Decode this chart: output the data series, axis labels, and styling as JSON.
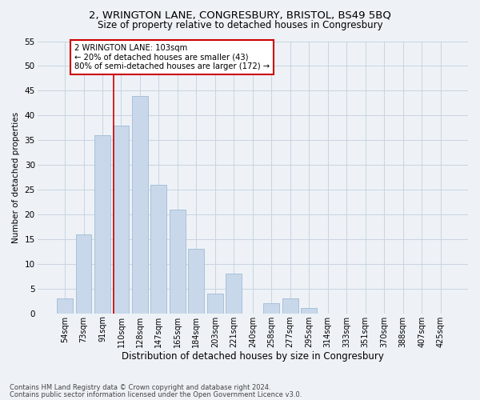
{
  "title1": "2, WRINGTON LANE, CONGRESBURY, BRISTOL, BS49 5BQ",
  "title2": "Size of property relative to detached houses in Congresbury",
  "xlabel": "Distribution of detached houses by size in Congresbury",
  "ylabel": "Number of detached properties",
  "footnote1": "Contains HM Land Registry data © Crown copyright and database right 2024.",
  "footnote2": "Contains public sector information licensed under the Open Government Licence v3.0.",
  "bar_labels": [
    "54sqm",
    "73sqm",
    "91sqm",
    "110sqm",
    "128sqm",
    "147sqm",
    "165sqm",
    "184sqm",
    "203sqm",
    "221sqm",
    "240sqm",
    "258sqm",
    "277sqm",
    "295sqm",
    "314sqm",
    "333sqm",
    "351sqm",
    "370sqm",
    "388sqm",
    "407sqm",
    "425sqm"
  ],
  "bar_values": [
    3,
    16,
    36,
    38,
    44,
    26,
    21,
    13,
    4,
    8,
    0,
    2,
    3,
    1,
    0,
    0,
    0,
    0,
    0,
    0,
    0
  ],
  "bar_color": "#c8d8ea",
  "bar_edge_color": "#a8c0d8",
  "grid_color": "#c8d4e0",
  "background_color": "#eef2f7",
  "red_line_x": 2.58,
  "annotation_text": "2 WRINGTON LANE: 103sqm\n← 20% of detached houses are smaller (43)\n80% of semi-detached houses are larger (172) →",
  "annotation_box_color": "#ffffff",
  "annotation_border_color": "#cc0000",
  "ylim": [
    0,
    55
  ],
  "yticks": [
    0,
    5,
    10,
    15,
    20,
    25,
    30,
    35,
    40,
    45,
    50,
    55
  ],
  "title1_fontsize": 9.5,
  "title2_fontsize": 8.5,
  "xlabel_fontsize": 8.5,
  "ylabel_fontsize": 7.5
}
